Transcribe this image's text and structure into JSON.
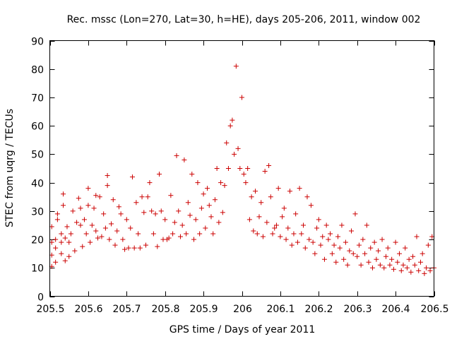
{
  "chart_data": {
    "type": "scatter",
    "title": "Rec. mssc (Lon=270, Lat=30, h=HE), days 205-206, 2011, window 002",
    "xlabel": "GPS time / Days of year 2011",
    "ylabel": "STEC from uqrg / TECUs",
    "xlim": [
      205.5,
      206.5
    ],
    "ylim": [
      0,
      90
    ],
    "xticks": [
      205.5,
      205.6,
      205.7,
      205.8,
      205.9,
      206,
      206.1,
      206.2,
      206.3,
      206.4,
      206.5
    ],
    "xtick_labels": [
      "205.5",
      "205.6",
      "205.7",
      "205.8",
      "205.9",
      "206",
      "206.1",
      "206.2",
      "206.3",
      "206.4",
      "206.5"
    ],
    "yticks": [
      0,
      10,
      20,
      30,
      40,
      50,
      60,
      70,
      80,
      90
    ],
    "ytick_labels": [
      "0",
      "10",
      "20",
      "30",
      "40",
      "50",
      "60",
      "70",
      "80",
      "90"
    ],
    "marker": "plus",
    "color": "#cc0000",
    "points": [
      [
        205.505,
        10.5
      ],
      [
        205.505,
        14.5
      ],
      [
        205.505,
        19
      ],
      [
        205.505,
        24.5
      ],
      [
        205.515,
        12
      ],
      [
        205.515,
        17
      ],
      [
        205.515,
        20
      ],
      [
        205.52,
        27
      ],
      [
        205.52,
        29
      ],
      [
        205.53,
        15
      ],
      [
        205.53,
        19
      ],
      [
        205.53,
        22
      ],
      [
        205.535,
        32
      ],
      [
        205.535,
        36
      ],
      [
        205.54,
        12.5
      ],
      [
        205.54,
        20.5
      ],
      [
        205.545,
        24.5
      ],
      [
        205.55,
        14
      ],
      [
        205.55,
        19
      ],
      [
        205.555,
        22
      ],
      [
        205.56,
        30
      ],
      [
        205.565,
        16
      ],
      [
        205.57,
        26
      ],
      [
        205.575,
        34.5
      ],
      [
        205.58,
        25
      ],
      [
        205.58,
        31
      ],
      [
        205.585,
        17.5
      ],
      [
        205.59,
        27
      ],
      [
        205.595,
        22
      ],
      [
        205.6,
        32
      ],
      [
        205.6,
        38
      ],
      [
        205.605,
        19
      ],
      [
        205.61,
        25
      ],
      [
        205.615,
        31
      ],
      [
        205.62,
        35.5
      ],
      [
        205.62,
        23
      ],
      [
        205.625,
        20.5
      ],
      [
        205.63,
        35
      ],
      [
        205.635,
        21
      ],
      [
        205.64,
        29
      ],
      [
        205.645,
        24
      ],
      [
        205.65,
        42.5
      ],
      [
        205.65,
        39
      ],
      [
        205.655,
        20
      ],
      [
        205.66,
        25.5
      ],
      [
        205.665,
        34
      ],
      [
        205.67,
        18
      ],
      [
        205.675,
        23
      ],
      [
        205.68,
        31.5
      ],
      [
        205.685,
        29
      ],
      [
        205.69,
        20
      ],
      [
        205.695,
        16.5
      ],
      [
        205.7,
        27
      ],
      [
        205.705,
        17
      ],
      [
        205.71,
        24
      ],
      [
        205.715,
        42
      ],
      [
        205.72,
        17
      ],
      [
        205.725,
        33
      ],
      [
        205.73,
        22
      ],
      [
        205.735,
        17
      ],
      [
        205.74,
        35
      ],
      [
        205.745,
        29.5
      ],
      [
        205.75,
        18
      ],
      [
        205.755,
        35
      ],
      [
        205.76,
        40
      ],
      [
        205.765,
        30
      ],
      [
        205.77,
        22
      ],
      [
        205.775,
        29
      ],
      [
        205.78,
        17.5
      ],
      [
        205.785,
        43
      ],
      [
        205.79,
        30
      ],
      [
        205.795,
        20
      ],
      [
        205.8,
        27
      ],
      [
        205.805,
        20
      ],
      [
        205.81,
        20.5
      ],
      [
        205.815,
        35.5
      ],
      [
        205.82,
        22
      ],
      [
        205.825,
        26
      ],
      [
        205.83,
        49.5
      ],
      [
        205.835,
        30
      ],
      [
        205.84,
        21
      ],
      [
        205.845,
        25
      ],
      [
        205.85,
        48
      ],
      [
        205.855,
        22
      ],
      [
        205.86,
        33
      ],
      [
        205.865,
        28.5
      ],
      [
        205.87,
        43
      ],
      [
        205.875,
        20
      ],
      [
        205.88,
        27
      ],
      [
        205.885,
        40
      ],
      [
        205.89,
        22
      ],
      [
        205.895,
        31
      ],
      [
        205.9,
        36
      ],
      [
        205.905,
        24
      ],
      [
        205.91,
        38
      ],
      [
        205.915,
        32
      ],
      [
        205.92,
        28
      ],
      [
        205.925,
        22
      ],
      [
        205.93,
        34
      ],
      [
        205.935,
        45
      ],
      [
        205.94,
        26
      ],
      [
        205.945,
        40
      ],
      [
        205.95,
        29.5
      ],
      [
        205.955,
        39
      ],
      [
        205.96,
        54
      ],
      [
        205.965,
        45
      ],
      [
        205.97,
        60
      ],
      [
        205.975,
        62
      ],
      [
        205.98,
        50
      ],
      [
        205.985,
        81
      ],
      [
        205.99,
        52
      ],
      [
        205.995,
        45
      ],
      [
        206.0,
        70
      ],
      [
        206.005,
        43
      ],
      [
        206.01,
        40
      ],
      [
        206.015,
        45
      ],
      [
        206.02,
        27
      ],
      [
        206.025,
        35
      ],
      [
        206.03,
        23
      ],
      [
        206.035,
        37
      ],
      [
        206.04,
        22
      ],
      [
        206.045,
        28
      ],
      [
        206.05,
        33
      ],
      [
        206.055,
        21
      ],
      [
        206.06,
        44
      ],
      [
        206.065,
        26
      ],
      [
        206.07,
        46
      ],
      [
        206.075,
        35
      ],
      [
        206.08,
        22
      ],
      [
        206.085,
        24
      ],
      [
        206.09,
        25
      ],
      [
        206.095,
        38
      ],
      [
        206.1,
        21
      ],
      [
        206.105,
        28
      ],
      [
        206.11,
        31
      ],
      [
        206.115,
        20
      ],
      [
        206.12,
        24
      ],
      [
        206.125,
        37
      ],
      [
        206.13,
        18
      ],
      [
        206.135,
        22
      ],
      [
        206.14,
        29
      ],
      [
        206.145,
        19
      ],
      [
        206.15,
        38
      ],
      [
        206.155,
        22
      ],
      [
        206.16,
        25
      ],
      [
        206.165,
        17
      ],
      [
        206.17,
        35
      ],
      [
        206.175,
        20
      ],
      [
        206.18,
        32
      ],
      [
        206.185,
        19
      ],
      [
        206.19,
        15
      ],
      [
        206.195,
        24
      ],
      [
        206.2,
        27
      ],
      [
        206.205,
        18
      ],
      [
        206.21,
        21
      ],
      [
        206.215,
        13
      ],
      [
        206.22,
        25
      ],
      [
        206.225,
        20
      ],
      [
        206.23,
        22
      ],
      [
        206.235,
        15
      ],
      [
        206.24,
        18
      ],
      [
        206.245,
        12
      ],
      [
        206.25,
        21
      ],
      [
        206.255,
        17
      ],
      [
        206.26,
        25
      ],
      [
        206.265,
        13
      ],
      [
        206.27,
        19
      ],
      [
        206.275,
        11
      ],
      [
        206.28,
        16
      ],
      [
        206.285,
        23
      ],
      [
        206.29,
        15
      ],
      [
        206.295,
        29
      ],
      [
        206.3,
        14
      ],
      [
        206.305,
        18
      ],
      [
        206.31,
        11
      ],
      [
        206.315,
        20
      ],
      [
        206.32,
        15
      ],
      [
        206.325,
        25
      ],
      [
        206.33,
        12
      ],
      [
        206.335,
        17
      ],
      [
        206.34,
        10
      ],
      [
        206.345,
        19
      ],
      [
        206.35,
        13
      ],
      [
        206.355,
        16
      ],
      [
        206.36,
        11
      ],
      [
        206.365,
        20
      ],
      [
        206.37,
        10
      ],
      [
        206.375,
        14
      ],
      [
        206.38,
        17
      ],
      [
        206.385,
        11
      ],
      [
        206.39,
        13
      ],
      [
        206.395,
        9.5
      ],
      [
        206.4,
        19
      ],
      [
        206.405,
        12
      ],
      [
        206.41,
        15
      ],
      [
        206.415,
        9
      ],
      [
        206.42,
        11
      ],
      [
        206.425,
        17
      ],
      [
        206.43,
        10
      ],
      [
        206.435,
        13
      ],
      [
        206.44,
        8.5
      ],
      [
        206.445,
        14
      ],
      [
        206.45,
        11
      ],
      [
        206.455,
        21
      ],
      [
        206.46,
        9
      ],
      [
        206.465,
        12
      ],
      [
        206.47,
        15
      ],
      [
        206.475,
        8
      ],
      [
        206.48,
        10
      ],
      [
        206.485,
        18
      ],
      [
        206.49,
        9
      ],
      [
        206.495,
        21
      ],
      [
        206.5,
        10
      ]
    ]
  }
}
